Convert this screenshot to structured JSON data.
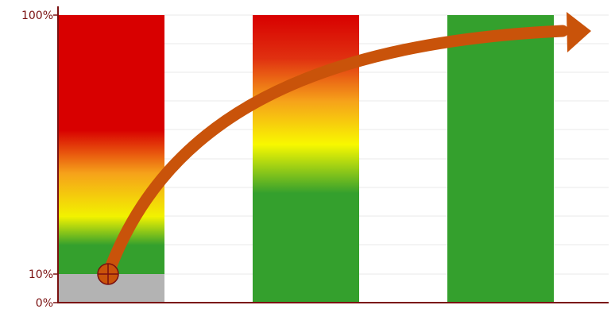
{
  "chart_data": {
    "type": "bar",
    "stacked": true,
    "categories": [
      "",
      "",
      ""
    ],
    "y_ticks": [
      {
        "value": 0,
        "label": "0%"
      },
      {
        "value": 10,
        "label": "10%"
      },
      {
        "value": 100,
        "label": "100%"
      }
    ],
    "ylim": [
      0,
      100
    ],
    "grid": true,
    "axis_color": "#7a1010",
    "bars": [
      {
        "total": 100,
        "base_segment": {
          "value": 10,
          "color": "#b3b3b3"
        },
        "gradient": [
          {
            "value": 10,
            "color": "#34a02d"
          },
          {
            "value": 20,
            "color": "#34a02d"
          },
          {
            "value": 30,
            "color": "#f2f200"
          },
          {
            "value": 45,
            "color": "#f6a21a"
          },
          {
            "value": 60,
            "color": "#d80000"
          },
          {
            "value": 100,
            "color": "#d80000"
          }
        ]
      },
      {
        "total": 100,
        "gradient": [
          {
            "value": 0,
            "color": "#34a02d"
          },
          {
            "value": 38,
            "color": "#34a02d"
          },
          {
            "value": 55,
            "color": "#f8f800"
          },
          {
            "value": 70,
            "color": "#f6a21a"
          },
          {
            "value": 85,
            "color": "#e03010"
          },
          {
            "value": 100,
            "color": "#d80000"
          }
        ]
      },
      {
        "total": 100,
        "gradient": [
          {
            "value": 0,
            "color": "#34a02d"
          },
          {
            "value": 100,
            "color": "#34a02d"
          }
        ]
      }
    ],
    "trend_arrow": {
      "color": "#c9530a",
      "start": {
        "category_index": 0,
        "value": 10
      },
      "marker": "crosshair-circle"
    }
  }
}
